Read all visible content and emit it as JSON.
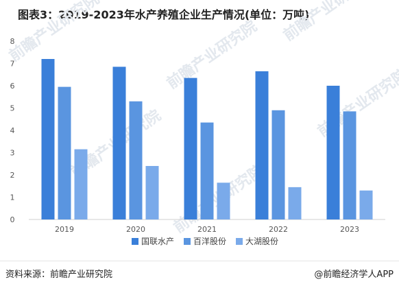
{
  "title": "图表3：2019-2023年水产养殖企业生产情况(单位：万吨)",
  "source": "资料来源：前瞻产业研究院",
  "credit": "@前瞻经济学人APP",
  "watermark": "前瞻产业研究院",
  "chart_data": {
    "type": "bar",
    "title": "图表3：2019-2023年水产养殖企业生产情况(单位：万吨)",
    "categories": [
      "2019",
      "2020",
      "2021",
      "2022",
      "2023"
    ],
    "series": [
      {
        "name": "国联水产",
        "color": "#3a7fd9",
        "values": [
          7.2,
          6.85,
          6.35,
          6.65,
          6.0
        ]
      },
      {
        "name": "百洋股份",
        "color": "#5a95e0",
        "values": [
          5.95,
          5.3,
          4.35,
          4.9,
          4.85
        ]
      },
      {
        "name": "大湖股份",
        "color": "#7aaaea",
        "values": [
          3.15,
          2.4,
          1.65,
          1.45,
          1.3
        ]
      }
    ],
    "ylim": [
      0,
      8
    ],
    "yticks": [
      0,
      1,
      2,
      3,
      4,
      5,
      6,
      7,
      8
    ],
    "grid": false,
    "legend_position": "bottom-center"
  }
}
